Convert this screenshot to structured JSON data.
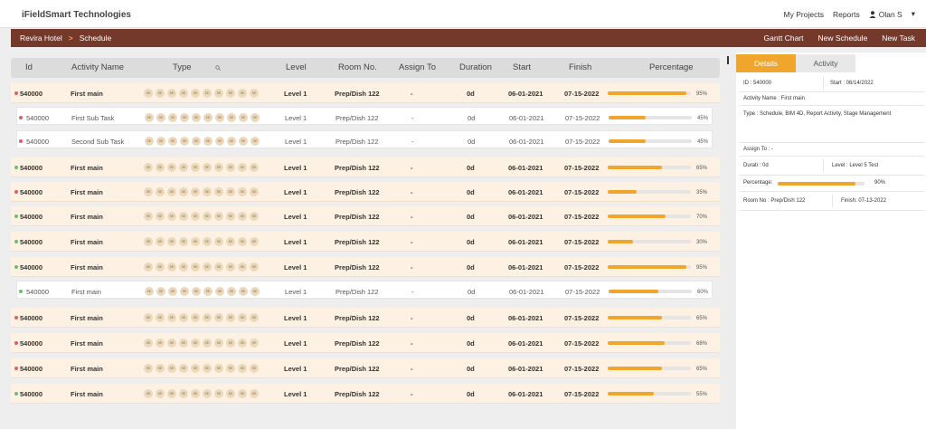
{
  "brand": "iFieldSmart Technologies",
  "topnav": {
    "projects": "My Projects",
    "reports": "Reports",
    "user": "Olan S",
    "user_icon": "person-icon",
    "caret": "▾"
  },
  "breadcrumb": {
    "project": "Revira Hotel",
    "sep": ">",
    "page": "Schedule"
  },
  "actions": {
    "gantt": "Gantt Chart",
    "new_schedule": "New Schedule",
    "new_task": "New Task"
  },
  "columns": [
    "Id",
    "Activity Name",
    "Type",
    "Level",
    "Room No.",
    "Assign To",
    "Duration",
    "Start",
    "Finish",
    "Percentage"
  ],
  "chip_label": "SE",
  "rows": [
    {
      "id": "540000",
      "name": "First main",
      "level": "Level 1",
      "room": "Prep/Dish 122",
      "assign": "-",
      "duration": "0d",
      "start": "06-01-2021",
      "finish": "07-15-2022",
      "pct": 95,
      "pct_label": "95%",
      "status": "red",
      "sub": false
    },
    {
      "id": "540000",
      "name": "First Sub Task",
      "level": "Level 1",
      "room": "Prep/Dish 122",
      "assign": "-",
      "duration": "0d",
      "start": "06-01-2021",
      "finish": "07-15-2022",
      "pct": 45,
      "pct_label": "45%",
      "status": "red",
      "sub": true
    },
    {
      "id": "540000",
      "name": "Second Sub Task",
      "level": "Level 1",
      "room": "Prep/Dish 122",
      "assign": "-",
      "duration": "0d",
      "start": "06-01-2021",
      "finish": "07-15-2022",
      "pct": 45,
      "pct_label": "45%",
      "status": "red",
      "sub": true
    },
    {
      "id": "540000",
      "name": "First main",
      "level": "Level 1",
      "room": "Prep/Dish 122",
      "assign": "-",
      "duration": "0d",
      "start": "06-01-2021",
      "finish": "07-15-2022",
      "pct": 65,
      "pct_label": "65%",
      "status": "green",
      "sub": false
    },
    {
      "id": "540000",
      "name": "First main",
      "level": "Level 1",
      "room": "Prep/Dish 122",
      "assign": "-",
      "duration": "0d",
      "start": "06-01-2021",
      "finish": "07-15-2022",
      "pct": 35,
      "pct_label": "35%",
      "status": "red",
      "sub": false
    },
    {
      "id": "540000",
      "name": "First main",
      "level": "Level 1",
      "room": "Prep/Dish 122",
      "assign": "-",
      "duration": "0d",
      "start": "06-01-2021",
      "finish": "07-15-2022",
      "pct": 70,
      "pct_label": "70%",
      "status": "green",
      "sub": false
    },
    {
      "id": "540000",
      "name": "First main",
      "level": "Level 1",
      "room": "Prep/Dish 122",
      "assign": "-",
      "duration": "0d",
      "start": "06-01-2021",
      "finish": "07-15-2022",
      "pct": 30,
      "pct_label": "30%",
      "status": "green",
      "sub": false
    },
    {
      "id": "540000",
      "name": "First main",
      "level": "Level 1",
      "room": "Prep/Dish 122",
      "assign": "-",
      "duration": "0d",
      "start": "06-01-2021",
      "finish": "07-15-2022",
      "pct": 95,
      "pct_label": "95%",
      "status": "green",
      "sub": false
    },
    {
      "id": "540000",
      "name": "First main",
      "level": "Level 1",
      "room": "Prep/Dish 122",
      "assign": "-",
      "duration": "0d",
      "start": "06-01-2021",
      "finish": "07-15-2022",
      "pct": 60,
      "pct_label": "60%",
      "status": "green",
      "sub": true
    },
    {
      "id": "540000",
      "name": "First main",
      "level": "Level 1",
      "room": "Prep/Dish 122",
      "assign": "-",
      "duration": "0d",
      "start": "06-01-2021",
      "finish": "07-15-2022",
      "pct": 65,
      "pct_label": "65%",
      "status": "red",
      "sub": false
    },
    {
      "id": "540000",
      "name": "First main",
      "level": "Level 1",
      "room": "Prep/Dish 122",
      "assign": "-",
      "duration": "0d",
      "start": "06-01-2021",
      "finish": "07-15-2022",
      "pct": 68,
      "pct_label": "68%",
      "status": "red",
      "sub": false
    },
    {
      "id": "540000",
      "name": "First main",
      "level": "Level 1",
      "room": "Prep/Dish 122",
      "assign": "-",
      "duration": "0d",
      "start": "06-01-2021",
      "finish": "07-15-2022",
      "pct": 65,
      "pct_label": "65%",
      "status": "red",
      "sub": false
    },
    {
      "id": "540000",
      "name": "First main",
      "level": "Level 1",
      "room": "Prep/Dish 122",
      "assign": "-",
      "duration": "0d",
      "start": "06-01-2021",
      "finish": "07-15-2022",
      "pct": 55,
      "pct_label": "55%",
      "status": "green",
      "sub": false
    }
  ],
  "panel": {
    "tabs": [
      "Details",
      "Activity"
    ],
    "id": "ID : 540000",
    "start": "Start : 06/14/2022",
    "activity_name": "Activity Name :  First main",
    "type": "Type :  Schedule, BIM 4D, Report Activity, Stage Management",
    "assign": "Assign To :  -",
    "duration": "Durati : 0d",
    "level": "Level : Level 5 Test",
    "percentage_label": "Percentage:",
    "percentage": 90,
    "percentage_text": "90%",
    "room": "Room No : Prep/Dish 122",
    "finish": "Finish: 07-13-2022"
  },
  "colors": {
    "brown": "#74392b",
    "orange": "#f0a52c",
    "row_bg": "#fcf1e2",
    "red": "#e06060",
    "green": "#6cc070"
  }
}
